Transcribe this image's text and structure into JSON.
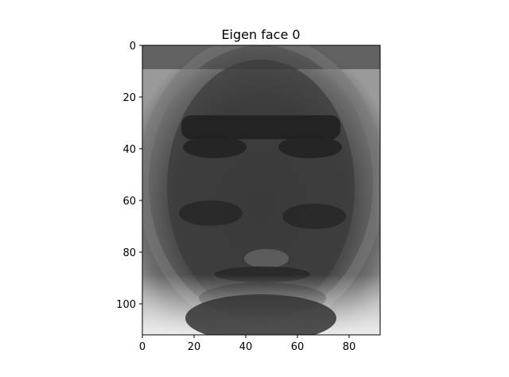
{
  "figure": {
    "title": "Eigen face 0"
  },
  "image": {
    "description_icon": "grayscale-eigenface-image",
    "colormap": "gray",
    "extent_x": [
      0,
      92
    ],
    "extent_y": [
      0,
      112
    ]
  },
  "axes": {
    "x_ticks": [
      {
        "value": 0,
        "label": "0"
      },
      {
        "value": 20,
        "label": "20"
      },
      {
        "value": 40,
        "label": "40"
      },
      {
        "value": 60,
        "label": "60"
      },
      {
        "value": 80,
        "label": "80"
      }
    ],
    "y_ticks": [
      {
        "value": 0,
        "label": "0"
      },
      {
        "value": 20,
        "label": "20"
      },
      {
        "value": 40,
        "label": "40"
      },
      {
        "value": 60,
        "label": "60"
      },
      {
        "value": 80,
        "label": "80"
      },
      {
        "value": 100,
        "label": "100"
      }
    ]
  }
}
